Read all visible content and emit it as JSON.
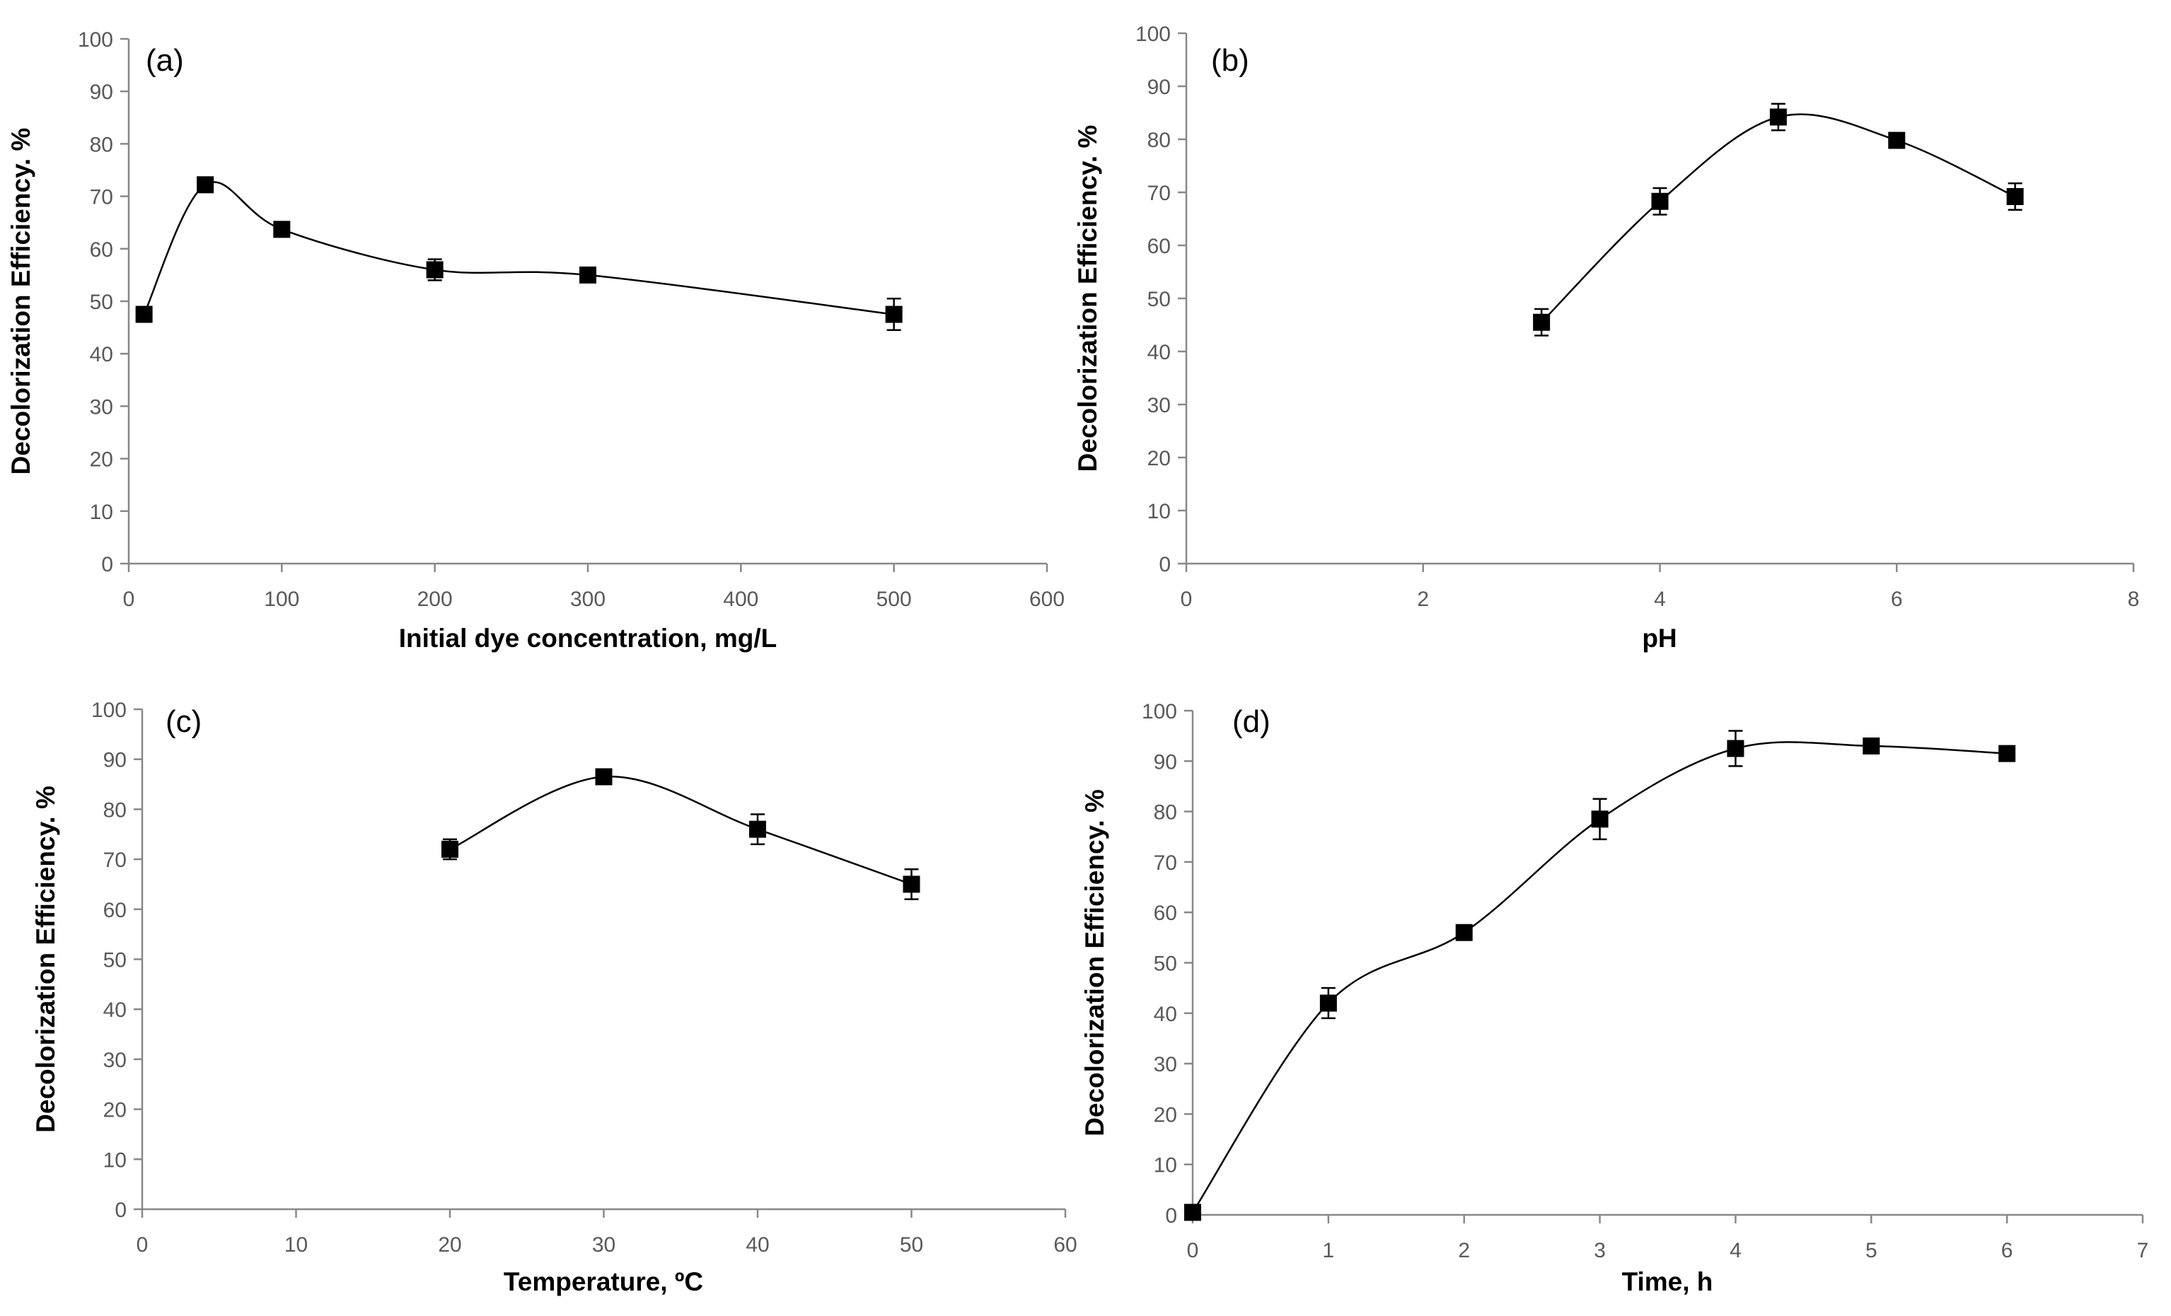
{
  "chart_data": [
    {
      "type": "scatter",
      "panel_label": "(a)",
      "xlabel": "Initial dye concentration, mg/L",
      "ylabel": "Decolorization Efficiency. %",
      "xlim": [
        0,
        600
      ],
      "ylim": [
        0,
        100
      ],
      "xticks": [
        0,
        100,
        200,
        300,
        400,
        500,
        600
      ],
      "yticks": [
        0,
        10,
        20,
        30,
        40,
        50,
        60,
        70,
        80,
        90,
        100
      ],
      "x": [
        10,
        50,
        100,
        200,
        300,
        500
      ],
      "y": [
        47.5,
        72.2,
        63.7,
        56.0,
        55.0,
        47.5
      ],
      "err": [
        1.2,
        1.0,
        1.0,
        2.0,
        1.0,
        3.0
      ],
      "grid": false,
      "smooth_line": true
    },
    {
      "type": "scatter",
      "panel_label": "(b)",
      "xlabel": "pH",
      "ylabel": "Decolorization Efficiency. %",
      "xlim": [
        0,
        8
      ],
      "ylim": [
        0,
        100
      ],
      "xticks": [
        0,
        2,
        4,
        6,
        8
      ],
      "yticks": [
        0,
        10,
        20,
        30,
        40,
        50,
        60,
        70,
        80,
        90,
        100
      ],
      "x": [
        3,
        4,
        5,
        6,
        7
      ],
      "y": [
        45.5,
        68.3,
        84.2,
        79.8,
        69.2
      ],
      "err": [
        2.5,
        2.5,
        2.5,
        1.0,
        2.5
      ],
      "grid": false,
      "smooth_line": true
    },
    {
      "type": "scatter",
      "panel_label": "(c)",
      "xlabel": "Temperature, ºC",
      "ylabel": "Decolorization Efficiency. %",
      "xlim": [
        0,
        60
      ],
      "ylim": [
        0,
        100
      ],
      "xticks": [
        0,
        10,
        20,
        30,
        40,
        50,
        60
      ],
      "yticks": [
        0,
        10,
        20,
        30,
        40,
        50,
        60,
        70,
        80,
        90,
        100
      ],
      "x": [
        20,
        30,
        40,
        50
      ],
      "y": [
        72.0,
        86.5,
        76.0,
        65.0
      ],
      "err": [
        2.0,
        1.0,
        3.0,
        3.0
      ],
      "grid": false,
      "smooth_line": true
    },
    {
      "type": "scatter",
      "panel_label": "(d)",
      "xlabel": "Time, h",
      "ylabel": "Decolorization Efficiency. %",
      "xlim": [
        0,
        7
      ],
      "ylim": [
        0,
        100
      ],
      "xticks": [
        0,
        1,
        2,
        3,
        4,
        5,
        6,
        7
      ],
      "yticks": [
        0,
        10,
        20,
        30,
        40,
        50,
        60,
        70,
        80,
        90,
        100
      ],
      "x": [
        0,
        1,
        2,
        3,
        4,
        5,
        6
      ],
      "y": [
        0.5,
        42.0,
        56.0,
        78.5,
        92.5,
        93.0,
        91.5
      ],
      "err": [
        0.5,
        3.0,
        1.0,
        4.0,
        3.5,
        1.0,
        1.0
      ],
      "grid": false,
      "smooth_line": true
    }
  ]
}
